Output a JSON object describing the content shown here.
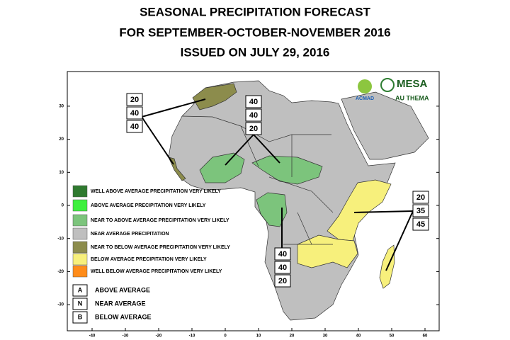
{
  "header": {
    "title_lines": [
      "SEASONAL PRECIPITATION FORECAST",
      "FOR SEPTEMBER-OCTOBER-NOVEMBER 2016",
      "ISSUED ON JULY 29, 2016"
    ]
  },
  "logos": {
    "acmad": "ACMAD",
    "mesa": "MESA",
    "mesa_sub": "AU THEMA"
  },
  "axes": {
    "lon_ticks": [
      -40,
      -30,
      -20,
      -10,
      0,
      10,
      20,
      30,
      40,
      50,
      60
    ],
    "lat_ticks": [
      30,
      20,
      10,
      0,
      -10,
      -20,
      -30
    ]
  },
  "legend": [
    {
      "label": "WELL ABOVE AVERAGE PRECIPITATION VERY LIKELY",
      "color": "#2f7a2f"
    },
    {
      "label": "ABOVE AVERAGE PRECIPITATION VERY LIKELY",
      "color": "#3df03d"
    },
    {
      "label": "NEAR TO ABOVE AVERAGE PRECIPITATION VERY LIKELY",
      "color": "#7cc47c"
    },
    {
      "label": "NEAR AVERAGE PRECIPITATION",
      "color": "#bfbfbf"
    },
    {
      "label": "NEAR  TO BELOW AVERAGE PRECIPITATION VERY LIKELY",
      "color": "#8c8c4c"
    },
    {
      "label": "BELOW  AVERAGE PRECIPITATION VERY LIKELY",
      "color": "#f7f07c"
    },
    {
      "label": "WELL BELOW AVERAGE PRECIPITATION VERY LIKELY",
      "color": "#ff8c1a"
    }
  ],
  "key": [
    {
      "letter": "A",
      "label": "ABOVE AVERAGE"
    },
    {
      "letter": "N",
      "label": "NEAR AVERAGE"
    },
    {
      "letter": "B",
      "label": "BELOW AVERAGE"
    }
  ],
  "callouts": [
    [
      20,
      40,
      40
    ],
    [
      40,
      40,
      20
    ],
    [
      20,
      35,
      45
    ],
    [
      40,
      40,
      20
    ]
  ]
}
